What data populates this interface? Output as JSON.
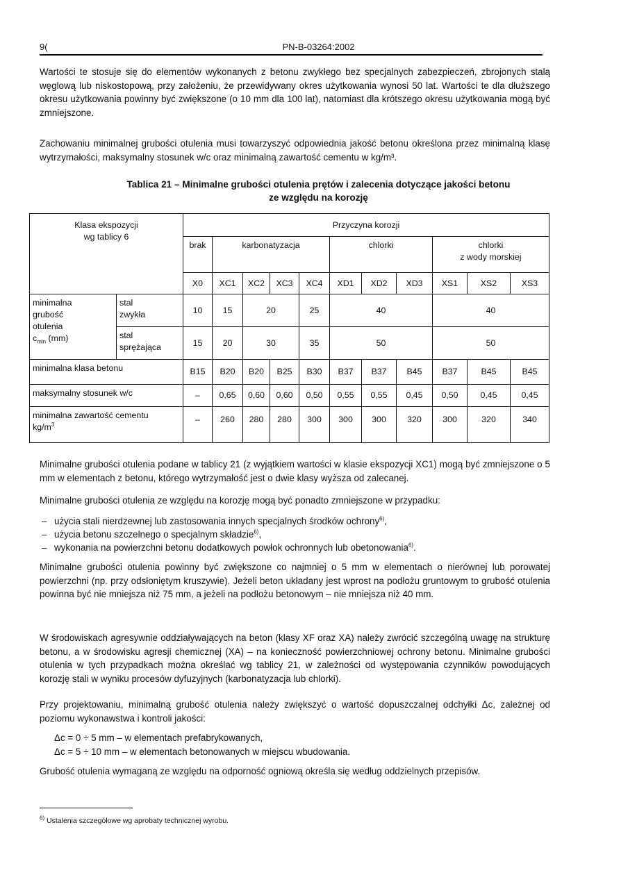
{
  "header": {
    "page_number": "9(",
    "standard": "PN-B-03264:2002"
  },
  "paragraphs": {
    "p1": "Wartości te stosuje się do elementów wykonanych z betonu zwykłego bez specjalnych zabezpieczeń, zbrojonych stalą węglową lub niskostopową, przy założeniu, że przewidywany okres użytkowania wynosi 50 lat. Wartości te dla dłuższego okresu użytkowania powinny być zwiększone (o 10 mm dla 100 lat), natomiast dla krótszego okresu użytkowania mogą być zmniejszone.",
    "p2": "Zachowaniu minimalnej grubości otulenia musi towarzyszyć odpowiednia jakość betonu określona przez minimalną klasę wytrzymałości, maksymalny stosunek w/c oraz minimalną zawartość cementu w kg/m³.",
    "p3": "Minimalne grubości otulenia podane w tablicy 21 (z wyjątkiem wartości w klasie ekspozycji XC1) mogą być zmniejszone o 5 mm w elementach z betonu, którego wytrzymałość jest o dwie klasy wyższa od zalecanej.",
    "p4": "Minimalne grubości otulenia ze względu na korozję mogą być ponadto zmniejszone w przypadku:",
    "bullets": [
      {
        "text": "użycia stali nierdzewnej lub zastosowania innych specjalnych środków ochrony",
        "sup": "6)",
        "end": ","
      },
      {
        "text": "użycia betonu szczelnego o specjalnym składzie",
        "sup": "6)",
        "end": ","
      },
      {
        "text": "wykonania na powierzchni betonu dodatkowych powłok ochronnych lub obetonowania",
        "sup": "6)",
        "end": "."
      }
    ],
    "p5": "Minimalne grubości otulenia powinny być zwiększone co najmniej o 5 mm w elementach o nierównej lub porowatej powierzchni (np. przy odsłoniętym kruszywie). Jeżeli beton układany jest wprost na podłożu gruntowym to grubość otulenia powinna być nie mniejsza niż 75 mm, a jeżeli na podłożu betonowym – nie mniejsza niż 40 mm.",
    "p6": "W środowiskach agresywnie oddziaływających na beton (klasy XF oraz XA) należy zwrócić szczególną uwagę na strukturę betonu, a w środowisku agresji chemicznej (XA) – na konieczność powierzchniowej ochrony betonu. Minimalne grubości otulenia w tych przypadkach można określać wg tablicy 21, w zależności od występowania czynników powodujących korozję stali w wyniku procesów dyfuzyjnych (karbonatyzacja lub chlorki).",
    "p7": "Przy projektowaniu, minimalną grubość otulenia należy zwiększyć o wartość dopuszczalnej odchyłki Δc, zależnej od poziomu wykonawstwa i kontroli jakości:",
    "delta1": "Δc = 0 ÷  5 mm – w elementach prefabrykowanych,",
    "delta2": "Δc = 5 ÷ 10 mm – w elementach betonowanych w miejscu wbudowania.",
    "p8": "Grubość otulenia wymaganą ze względu na odporność ogniową określa się według oddzielnych przepisów."
  },
  "table": {
    "title_line1": "Tablica 21 – Minimalne grubości otulenia prętów i zalecenia dotyczące jakości betonu",
    "title_line2": "ze względu na korozję",
    "corner_line1": "Klasa ekspozycji",
    "corner_line2": "wg tablicy 6",
    "cause": "Przyczyna korozji",
    "groups": [
      "brak",
      "karbonatyzacja",
      "chlorki",
      "chlorki",
      "z wody morskiej"
    ],
    "classes": [
      "X0",
      "XC1",
      "XC2",
      "XC3",
      "XC4",
      "XD1",
      "XD2",
      "XD3",
      "XS1",
      "XS2",
      "XS3"
    ],
    "cmin_label": [
      "minimalna",
      "grubość",
      "otulenia",
      "c",
      "min",
      " (mm)"
    ],
    "steel_normal": [
      "stal",
      "zwykła"
    ],
    "steel_prestressed": [
      "stal",
      "sprężająca"
    ],
    "cmin_normal": [
      "10",
      "15",
      "20",
      "25",
      "40",
      "40"
    ],
    "cmin_prestressed": [
      "15",
      "20",
      "30",
      "35",
      "50",
      "50"
    ],
    "min_class_label": "minimalna klasa betonu",
    "min_class": [
      "B15",
      "B20",
      "B20",
      "B25",
      "B30",
      "B37",
      "B37",
      "B45",
      "B37",
      "B45",
      "B45"
    ],
    "wc_label": "maksymalny stosunek w/c",
    "wc": [
      "–",
      "0,65",
      "0,60",
      "0,60",
      "0,50",
      "0,55",
      "0,55",
      "0,45",
      "0,50",
      "0,45",
      "0,45"
    ],
    "cement_label": "minimalna zawartość cementu",
    "cement_unit": "kg/m",
    "cement_unit_sup": "3",
    "cement": [
      "–",
      "260",
      "280",
      "280",
      "300",
      "300",
      "300",
      "320",
      "300",
      "320",
      "340"
    ]
  },
  "footnote": {
    "mark": "6)",
    "text": "Ustalenia szczegółowe wg aprobaty technicznej wyrobu."
  }
}
